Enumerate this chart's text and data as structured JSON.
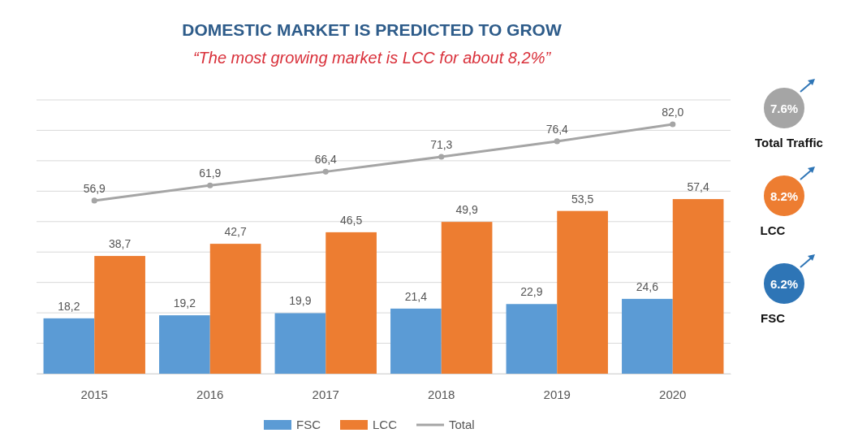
{
  "chart_data": {
    "type": "bar",
    "title": "DOMESTIC MARKET IS PREDICTED TO GROW",
    "subtitle": "“The most growing market is LCC for about 8,2%”",
    "categories": [
      "2015",
      "2016",
      "2017",
      "2018",
      "2019",
      "2020"
    ],
    "series": [
      {
        "name": "FSC",
        "color": "#5b9bd5",
        "values": [
          18.2,
          19.2,
          19.9,
          21.4,
          22.9,
          24.6
        ],
        "value_labels": [
          "18,2",
          "19,2",
          "19,9",
          "21,4",
          "22,9",
          "24,6"
        ]
      },
      {
        "name": "LCC",
        "color": "#ed7d31",
        "values": [
          38.7,
          42.7,
          46.5,
          49.9,
          53.5,
          57.4
        ],
        "value_labels": [
          "38,7",
          "42,7",
          "46,5",
          "49,9",
          "53,5",
          "57,4"
        ]
      },
      {
        "name": "Total",
        "type": "line",
        "color": "#a5a5a5",
        "marker": "circle",
        "values": [
          56.9,
          61.9,
          66.4,
          71.3,
          76.4,
          82.0
        ],
        "value_labels": [
          "56,9",
          "61,9",
          "66,4",
          "71,3",
          "76,4",
          "82,0"
        ]
      }
    ],
    "ylim": [
      0,
      90
    ],
    "yticks": [
      {
        "value": 0,
        "label": null
      },
      {
        "value": 10,
        "label": null
      },
      {
        "value": 20,
        "label": null
      },
      {
        "value": 30,
        "label": null
      },
      {
        "value": 40,
        "label": null
      },
      {
        "value": 50,
        "label": null
      },
      {
        "value": 60,
        "label": null
      },
      {
        "value": 70,
        "label": null
      },
      {
        "value": 80,
        "label": null
      },
      {
        "value": 90,
        "label": null
      }
    ],
    "grid": "y",
    "legend": "bottom",
    "annotations": [
      "7.6%",
      "Total Traffic",
      "8.2%",
      "LCC",
      "6.2%",
      "FSC"
    ]
  }
}
